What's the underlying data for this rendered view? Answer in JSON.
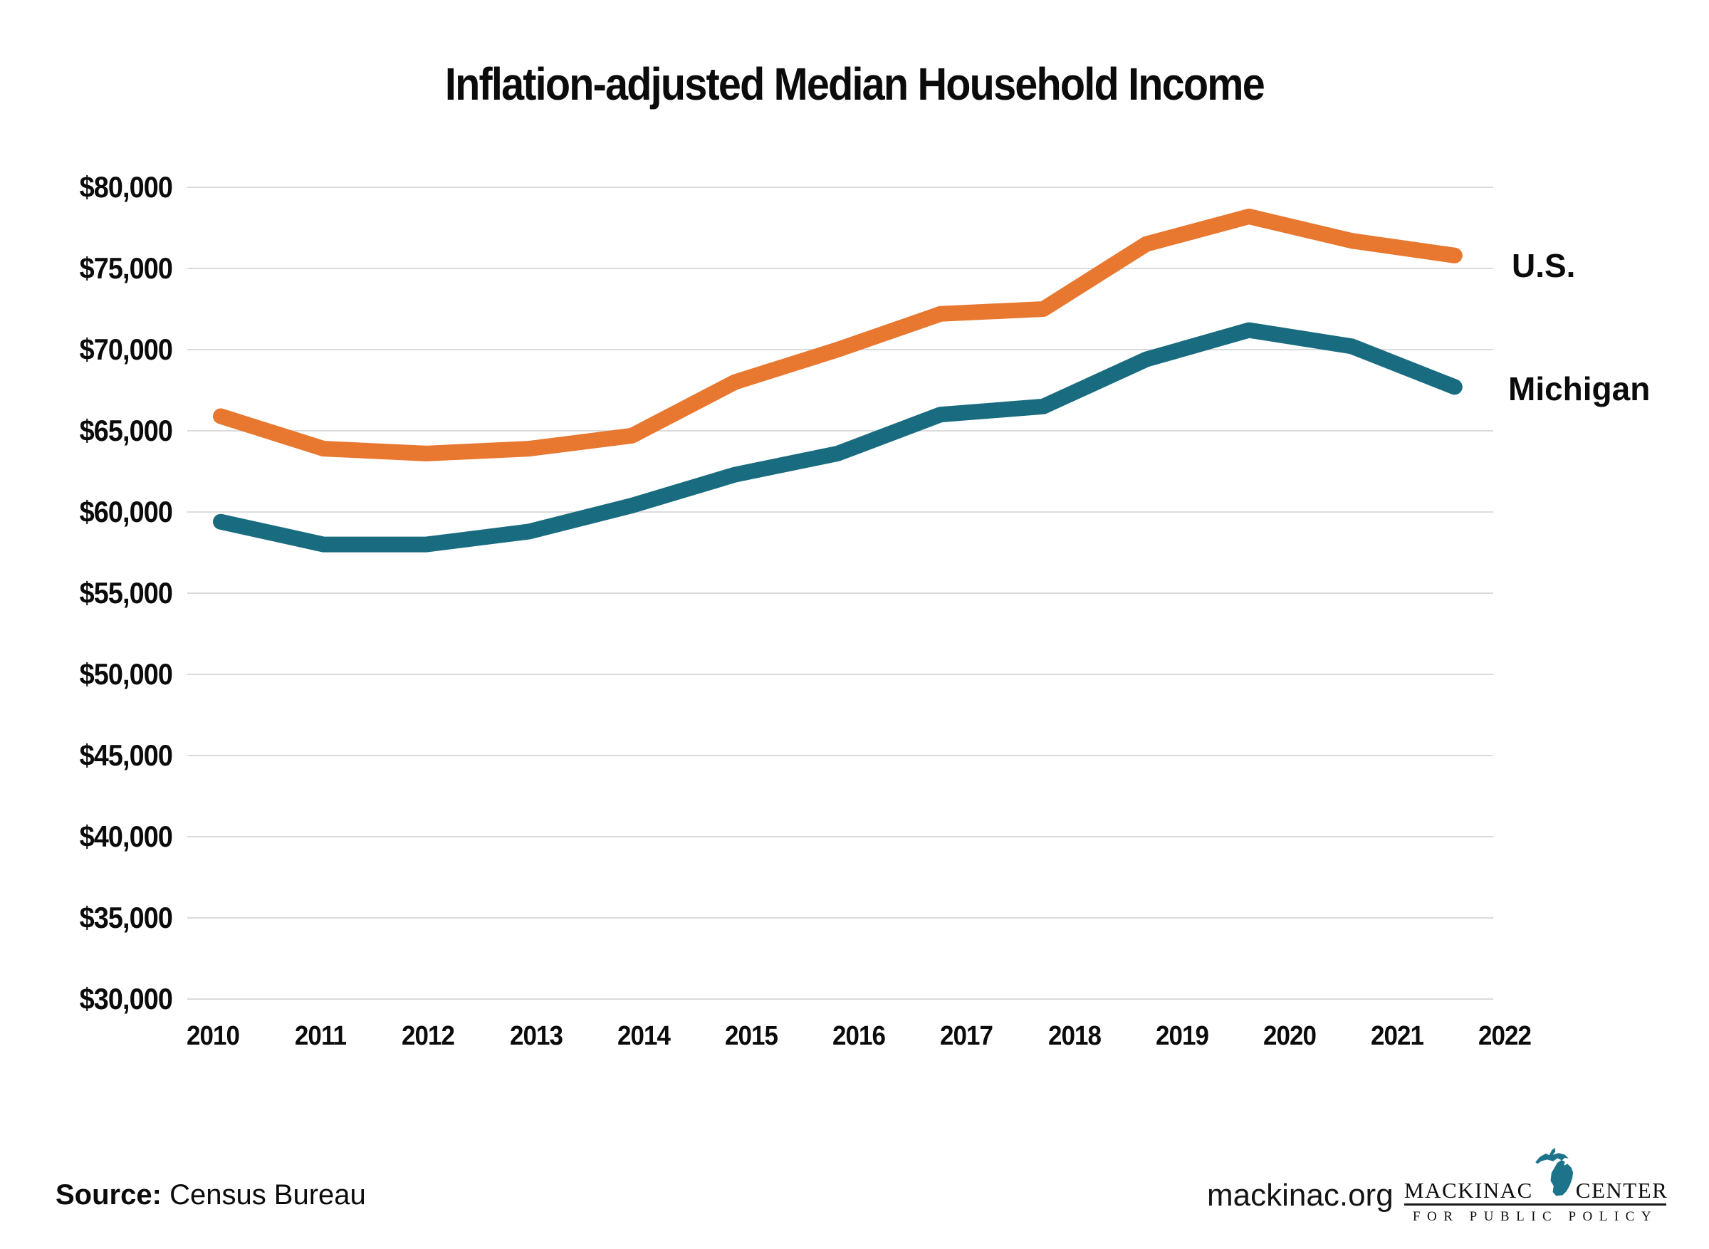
{
  "title": "Inflation-adjusted Median Household Income",
  "chart_data": {
    "type": "line",
    "title": "Inflation-adjusted Median Household Income",
    "x": [
      2010,
      2011,
      2012,
      2013,
      2014,
      2015,
      2016,
      2017,
      2018,
      2019,
      2020,
      2021,
      2022
    ],
    "series": [
      {
        "name": "U.S.",
        "color": "#E8772F",
        "values": [
          65900,
          63900,
          63600,
          63900,
          64700,
          68000,
          70000,
          72200,
          72500,
          76500,
          78200,
          76700,
          75800
        ]
      },
      {
        "name": "Michigan",
        "color": "#196C80",
        "values": [
          59400,
          58000,
          58000,
          58800,
          60400,
          62300,
          63600,
          66000,
          66500,
          69400,
          71200,
          70200,
          67700
        ]
      }
    ],
    "ylim": [
      30000,
      80000
    ],
    "ytick_step": 5000,
    "y_axis_labels": [
      "$80,000",
      "$75,000",
      "$70,000",
      "$65,000",
      "$60,000",
      "$55,000",
      "$50,000",
      "$45,000",
      "$40,000",
      "$35,000",
      "$30,000"
    ],
    "x_axis_labels": [
      "2010",
      "2011",
      "2012",
      "2013",
      "2014",
      "2015",
      "2016",
      "2017",
      "2018",
      "2019",
      "2020",
      "2021",
      "2022"
    ],
    "grid": "horizontal-only",
    "legend": "line-end-labels"
  },
  "colors": {
    "us_line": "#E8772F",
    "michigan_line": "#196C80",
    "gridline": "#DBDBDB",
    "text": "#0B0B0B",
    "logo_teal": "#1D7389"
  },
  "footer": {
    "source_label": "Source:",
    "source_value": "Census Bureau",
    "site": "mackinac.org",
    "logo": {
      "word1": "MACKINAC",
      "word2": "CENTER",
      "subtitle": "FOR PUBLIC POLICY"
    }
  }
}
